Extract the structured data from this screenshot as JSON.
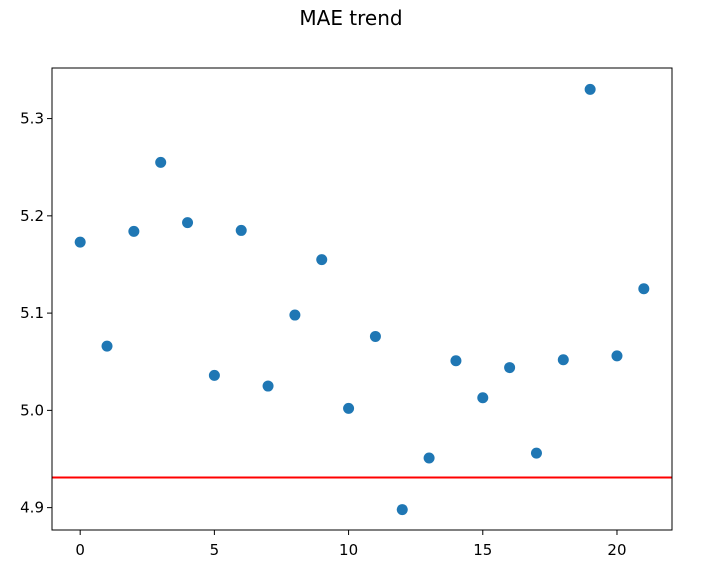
{
  "chart_data": {
    "type": "scatter",
    "title": "MAE trend",
    "xlabel": "",
    "ylabel": "",
    "x": [
      0,
      1,
      2,
      3,
      4,
      5,
      6,
      7,
      8,
      9,
      10,
      11,
      12,
      13,
      14,
      15,
      16,
      17,
      18,
      19,
      20,
      21
    ],
    "y": [
      5.173,
      5.066,
      5.184,
      5.255,
      5.193,
      5.036,
      5.185,
      5.025,
      5.098,
      5.155,
      5.002,
      5.076,
      4.898,
      4.951,
      5.051,
      5.013,
      5.044,
      4.956,
      5.052,
      5.33,
      5.056,
      5.125
    ],
    "xlim": [
      -1.05,
      22.05
    ],
    "ylim": [
      4.877,
      5.352
    ],
    "xticks": [
      0,
      5,
      10,
      15,
      20
    ],
    "xtick_labels": [
      "0",
      "5",
      "10",
      "15",
      "20"
    ],
    "yticks": [
      4.9,
      5.0,
      5.1,
      5.2,
      5.3
    ],
    "ytick_labels": [
      "4.9",
      "5.0",
      "5.1",
      "5.2",
      "5.3"
    ],
    "reference_line": {
      "orientation": "horizontal",
      "y": 4.931,
      "color": "#ff0000"
    },
    "marker_color": "#1f77b4",
    "grid": false,
    "legend": "none"
  }
}
